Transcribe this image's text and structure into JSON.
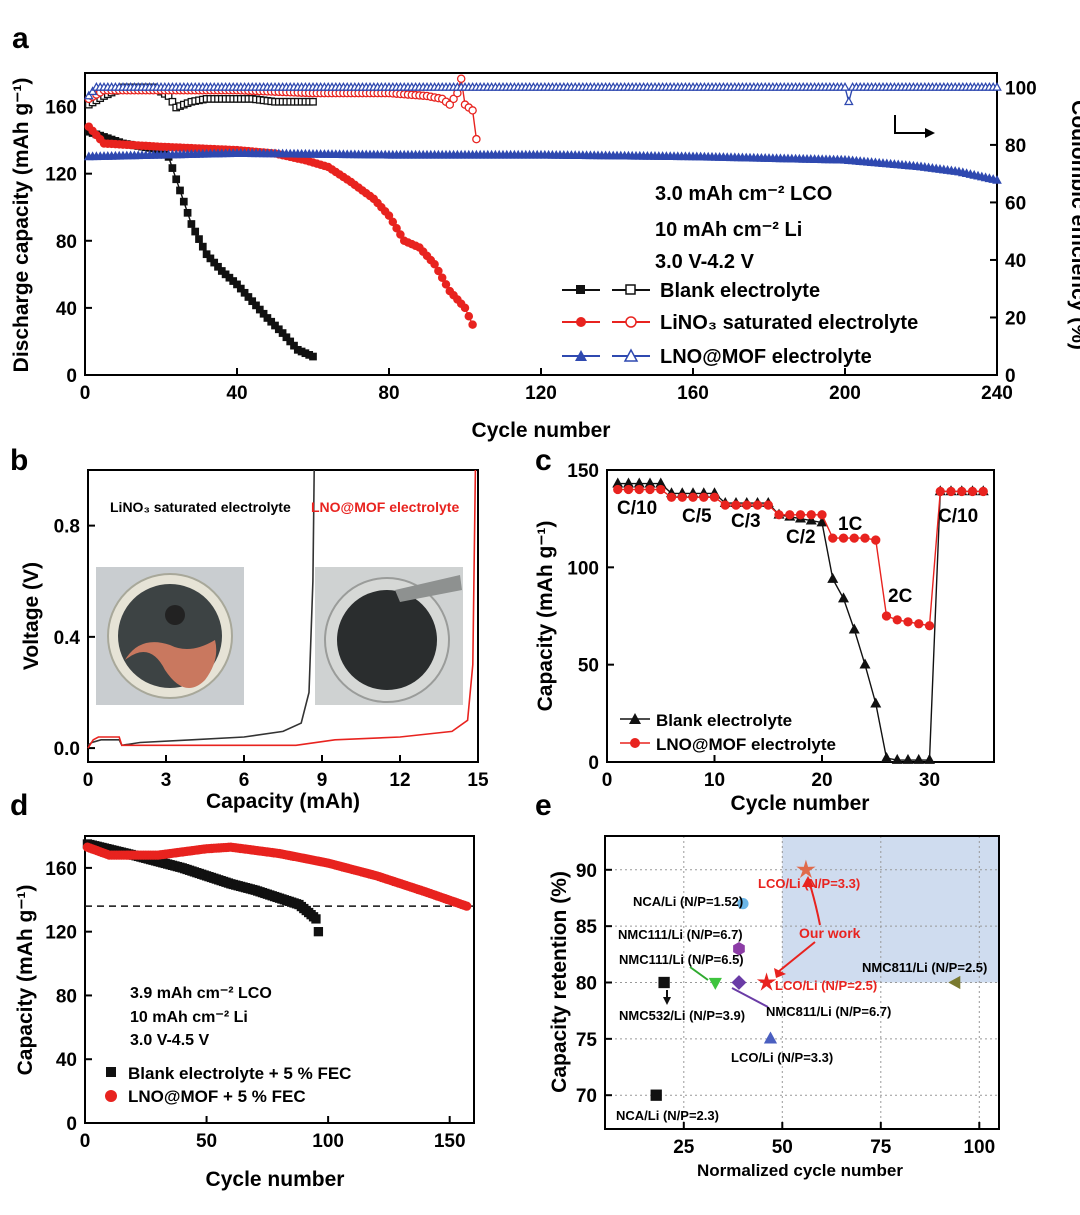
{
  "colors": {
    "black": "#111111",
    "red": "#e8231f",
    "blue": "#2f49b0",
    "shade": "#cfdcef"
  },
  "panels": {
    "a": "a",
    "b": "b",
    "c": "c",
    "d": "d",
    "e": "e"
  },
  "chart_data": [
    {
      "id": "a",
      "type": "line",
      "xlabel": "Cycle number",
      "ylabel": "Discharge capacity (mAh g⁻¹)",
      "y2label": "Coulombic efficiency (%)",
      "xlim": [
        0,
        240
      ],
      "ylim": [
        0,
        180
      ],
      "y2lim": [
        0,
        105
      ],
      "xticks": [
        0,
        40,
        80,
        120,
        160,
        200,
        240
      ],
      "yticks": [
        0,
        40,
        80,
        120,
        160
      ],
      "y2ticks": [
        0,
        20,
        40,
        60,
        80,
        100
      ],
      "annotations": [
        "3.0 mAh cm⁻² LCO",
        "10 mAh cm⁻²  Li",
        "3.0 V-4.2 V"
      ],
      "legend": [
        "Blank electrolyte",
        "LiNO₃ saturated electrolyte",
        "LNO@MOF electrolyte"
      ],
      "series": [
        {
          "name": "Blank electrolyte",
          "axis": "capacity",
          "points": [
            [
              1,
              145
            ],
            [
              10,
              138
            ],
            [
              18,
              135
            ],
            [
              22,
              130
            ],
            [
              25,
              110
            ],
            [
              28,
              90
            ],
            [
              32,
              72
            ],
            [
              36,
              62
            ],
            [
              40,
              54
            ],
            [
              44,
              44
            ],
            [
              48,
              34
            ],
            [
              52,
              25
            ],
            [
              56,
              15
            ],
            [
              60,
              11
            ]
          ]
        },
        {
          "name": "Blank electrolyte",
          "axis": "efficiency",
          "points": [
            [
              1,
              94
            ],
            [
              5,
              97
            ],
            [
              10,
              100
            ],
            [
              18,
              100
            ],
            [
              22,
              97
            ],
            [
              24,
              93
            ],
            [
              28,
              95
            ],
            [
              32,
              96
            ],
            [
              38,
              96
            ],
            [
              44,
              96
            ],
            [
              50,
              95
            ],
            [
              55,
              95
            ],
            [
              60,
              95
            ]
          ]
        },
        {
          "name": "LiNO₃ saturated electrolyte",
          "axis": "capacity",
          "points": [
            [
              1,
              148
            ],
            [
              5,
              138
            ],
            [
              20,
              136
            ],
            [
              40,
              134
            ],
            [
              50,
              132
            ],
            [
              58,
              128
            ],
            [
              64,
              124
            ],
            [
              70,
              115
            ],
            [
              76,
              105
            ],
            [
              80,
              95
            ],
            [
              84,
              80
            ],
            [
              88,
              76
            ],
            [
              92,
              66
            ],
            [
              96,
              50
            ],
            [
              100,
              40
            ],
            [
              102,
              30
            ]
          ]
        },
        {
          "name": "LiNO₃ saturated electrolyte",
          "axis": "efficiency",
          "points": [
            [
              1,
              96
            ],
            [
              5,
              99
            ],
            [
              40,
              99
            ],
            [
              60,
              98
            ],
            [
              80,
              98
            ],
            [
              90,
              97
            ],
            [
              94,
              96
            ],
            [
              96,
              94
            ],
            [
              98,
              98
            ],
            [
              99,
              103
            ],
            [
              100,
              94
            ],
            [
              102,
              92
            ],
            [
              103,
              82
            ]
          ]
        },
        {
          "name": "LNO@MOF electrolyte",
          "axis": "capacity",
          "points": [
            [
              1,
              130
            ],
            [
              40,
              132
            ],
            [
              80,
              131
            ],
            [
              120,
              131
            ],
            [
              160,
              130
            ],
            [
              200,
              128
            ],
            [
              220,
              124
            ],
            [
              230,
              121
            ],
            [
              240,
              116
            ]
          ]
        },
        {
          "name": "LNO@MOF electrolyte",
          "axis": "efficiency",
          "points": [
            [
              1,
              97
            ],
            [
              3,
              100
            ],
            [
              100,
              100
            ],
            [
              200,
              100
            ],
            [
              201,
              95
            ],
            [
              202,
              100
            ],
            [
              240,
              100
            ]
          ]
        }
      ]
    },
    {
      "id": "b",
      "type": "line",
      "xlabel": "Capacity (mAh)",
      "ylabel": "Voltage (V)",
      "xlim": [
        0,
        15
      ],
      "ylim": [
        -0.05,
        1.0
      ],
      "xticks": [
        0,
        3,
        6,
        9,
        12,
        15
      ],
      "yticks": [
        0.0,
        0.4,
        0.8
      ],
      "labels": [
        "LiNO₃ saturated electrolyte",
        "LNO@MOF electrolyte"
      ],
      "series": [
        {
          "name": "LiNO₃ saturated electrolyte",
          "points": [
            [
              0,
              0.01
            ],
            [
              0.15,
              0.02
            ],
            [
              0.5,
              0.03
            ],
            [
              1.2,
              0.03
            ],
            [
              1.3,
              0.01
            ],
            [
              2,
              0.02
            ],
            [
              4,
              0.03
            ],
            [
              6,
              0.04
            ],
            [
              7.5,
              0.06
            ],
            [
              8.2,
              0.09
            ],
            [
              8.5,
              0.2
            ],
            [
              8.65,
              0.6
            ],
            [
              8.7,
              1.0
            ]
          ]
        },
        {
          "name": "LNO@MOF electrolyte",
          "points": [
            [
              0,
              0.0
            ],
            [
              0.2,
              0.03
            ],
            [
              0.4,
              0.04
            ],
            [
              1.2,
              0.04
            ],
            [
              1.3,
              0.01
            ],
            [
              4,
              0.01
            ],
            [
              8,
              0.01
            ],
            [
              9.5,
              0.03
            ],
            [
              12,
              0.04
            ],
            [
              14,
              0.06
            ],
            [
              14.6,
              0.1
            ],
            [
              14.8,
              0.3
            ],
            [
              14.9,
              1.0
            ]
          ]
        }
      ]
    },
    {
      "id": "c",
      "type": "line",
      "xlabel": "Cycle number",
      "ylabel": "Capacity (mAh g⁻¹)",
      "xlim": [
        0,
        36
      ],
      "ylim": [
        0,
        150
      ],
      "xticks": [
        0,
        10,
        20,
        30
      ],
      "yticks": [
        0,
        50,
        100,
        150
      ],
      "rate_labels": [
        "C/10",
        "C/5",
        "C/3",
        "C/2",
        "1C",
        "2C",
        "C/10"
      ],
      "legend": [
        "Blank electrolyte",
        "LNO@MOF electrolyte"
      ],
      "series": [
        {
          "name": "Blank electrolyte",
          "x": [
            1,
            2,
            3,
            4,
            5,
            6,
            7,
            8,
            9,
            10,
            11,
            12,
            13,
            14,
            15,
            16,
            17,
            18,
            19,
            20,
            21,
            22,
            23,
            24,
            25,
            26,
            27,
            28,
            29,
            30,
            31,
            32,
            33,
            34,
            35
          ],
          "values": [
            143,
            143,
            143,
            143,
            143,
            138,
            138,
            138,
            138,
            138,
            133,
            133,
            133,
            133,
            133,
            127,
            126,
            125,
            124,
            123,
            94,
            84,
            68,
            50,
            30,
            2,
            1,
            1,
            1,
            1,
            139,
            139,
            139,
            139,
            139
          ]
        },
        {
          "name": "LNO@MOF electrolyte",
          "x": [
            1,
            2,
            3,
            4,
            5,
            6,
            7,
            8,
            9,
            10,
            11,
            12,
            13,
            14,
            15,
            16,
            17,
            18,
            19,
            20,
            21,
            22,
            23,
            24,
            25,
            26,
            27,
            28,
            29,
            30,
            31,
            32,
            33,
            34,
            35
          ],
          "values": [
            140,
            140,
            140,
            140,
            140,
            136,
            136,
            136,
            136,
            136,
            132,
            132,
            132,
            132,
            132,
            127,
            127,
            127,
            127,
            127,
            115,
            115,
            115,
            115,
            114,
            75,
            73,
            72,
            71,
            70,
            139,
            139,
            139,
            139,
            139
          ]
        }
      ]
    },
    {
      "id": "d",
      "type": "line",
      "xlabel": "Cycle number",
      "ylabel": "Capacity (mAh g⁻¹)",
      "xlim": [
        0,
        160
      ],
      "ylim": [
        0,
        180
      ],
      "xticks": [
        0,
        50,
        100,
        150
      ],
      "yticks": [
        0,
        40,
        80,
        120,
        160
      ],
      "reference_y": 136,
      "annotations": [
        "3.9 mAh cm⁻² LCO",
        "10 mAh cm⁻²  Li",
        "3.0 V-4.5 V"
      ],
      "legend": [
        "Blank electrolyte + 5 % FEC",
        "LNO@MOF + 5 % FEC"
      ],
      "series": [
        {
          "name": "Blank electrolyte + 5 % FEC",
          "points": [
            [
              1,
              175
            ],
            [
              20,
              168
            ],
            [
              40,
              160
            ],
            [
              60,
              150
            ],
            [
              70,
              146
            ],
            [
              80,
              141
            ],
            [
              88,
              137
            ],
            [
              92,
              132
            ],
            [
              95,
              128
            ],
            [
              96,
              120
            ]
          ]
        },
        {
          "name": "LNO@MOF + 5 % FEC",
          "points": [
            [
              1,
              173
            ],
            [
              10,
              168
            ],
            [
              30,
              168
            ],
            [
              50,
              172
            ],
            [
              60,
              173
            ],
            [
              80,
              169
            ],
            [
              100,
              163
            ],
            [
              120,
              155
            ],
            [
              140,
              145
            ],
            [
              157,
              136
            ]
          ]
        }
      ]
    },
    {
      "id": "e",
      "type": "scatter",
      "xlabel": "Normalized cycle number",
      "ylabel": "Capacity retention (%)",
      "xlim": [
        5,
        105
      ],
      "ylim": [
        67,
        93
      ],
      "xticks": [
        25,
        50,
        75,
        100
      ],
      "yticks": [
        70,
        75,
        80,
        85,
        90
      ],
      "shaded_region": {
        "x": [
          50,
          105
        ],
        "y": [
          80,
          93
        ]
      },
      "annotation": "Our work",
      "points": [
        {
          "label": "LCO/Li (N/P=3.3)",
          "x": 56,
          "y": 90,
          "marker": "star",
          "color": "#e06a4a"
        },
        {
          "label": "NCA/Li (N/P=1.52)",
          "x": 40,
          "y": 87,
          "marker": "circle",
          "color": "#6bb6e8"
        },
        {
          "label": "NMC111/Li (N/P=6.7)",
          "x": 39,
          "y": 83,
          "marker": "hexagon",
          "color": "#8c3ca6"
        },
        {
          "label": "NMC111/Li (N/P=6.5)",
          "x": 33,
          "y": 80,
          "marker": "triangle-down",
          "color": "#3ec43e"
        },
        {
          "label": "NMC532/Li (N/P=3.9)",
          "x": 20,
          "y": 80,
          "marker": "square",
          "color": "#111111"
        },
        {
          "label": "NMC811/Li (N/P=6.7)",
          "x": 39,
          "y": 80,
          "marker": "diamond",
          "color": "#6a3ca6"
        },
        {
          "label": "LCO/Li (N/P=2.5)",
          "x": 46,
          "y": 80,
          "marker": "star",
          "color": "#e8231f"
        },
        {
          "label": "NMC811/Li (N/P=2.5)",
          "x": 94,
          "y": 80,
          "marker": "triangle-left",
          "color": "#7a7a30"
        },
        {
          "label": "LCO/Li (N/P=3.3)",
          "x": 47,
          "y": 75,
          "marker": "triangle-up",
          "color": "#4a5fc0"
        },
        {
          "label": "NCA/Li (N/P=2.3)",
          "x": 18,
          "y": 70,
          "marker": "square",
          "color": "#111111"
        }
      ]
    }
  ]
}
